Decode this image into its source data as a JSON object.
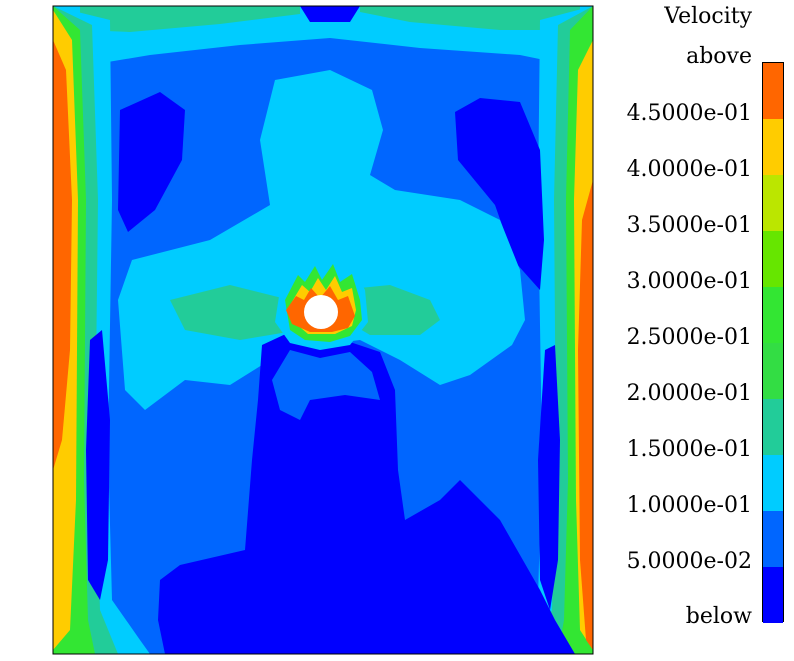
{
  "legend": {
    "title": "Velocity",
    "labels": [
      "above",
      "4.5000e-01",
      "4.0000e-01",
      "3.5000e-01",
      "3.0000e-01",
      "2.5000e-01",
      "2.0000e-01",
      "1.5000e-01",
      "1.0000e-01",
      "5.0000e-02",
      "below"
    ],
    "colors": [
      "#ff6600",
      "#ffcc00",
      "#bbe600",
      "#66e600",
      "#33e633",
      "#33dd44",
      "#22cc99",
      "#00ccff",
      "#0066ff",
      "#0000ff"
    ]
  },
  "colors": {
    "deep_blue": "#0000ff",
    "blue": "#0066ff",
    "cyan": "#00ccff",
    "teal": "#22cc99",
    "green": "#33e633",
    "yellow": "#ffcc00",
    "orange": "#ff6600",
    "obstacle": "#ffffff"
  }
}
